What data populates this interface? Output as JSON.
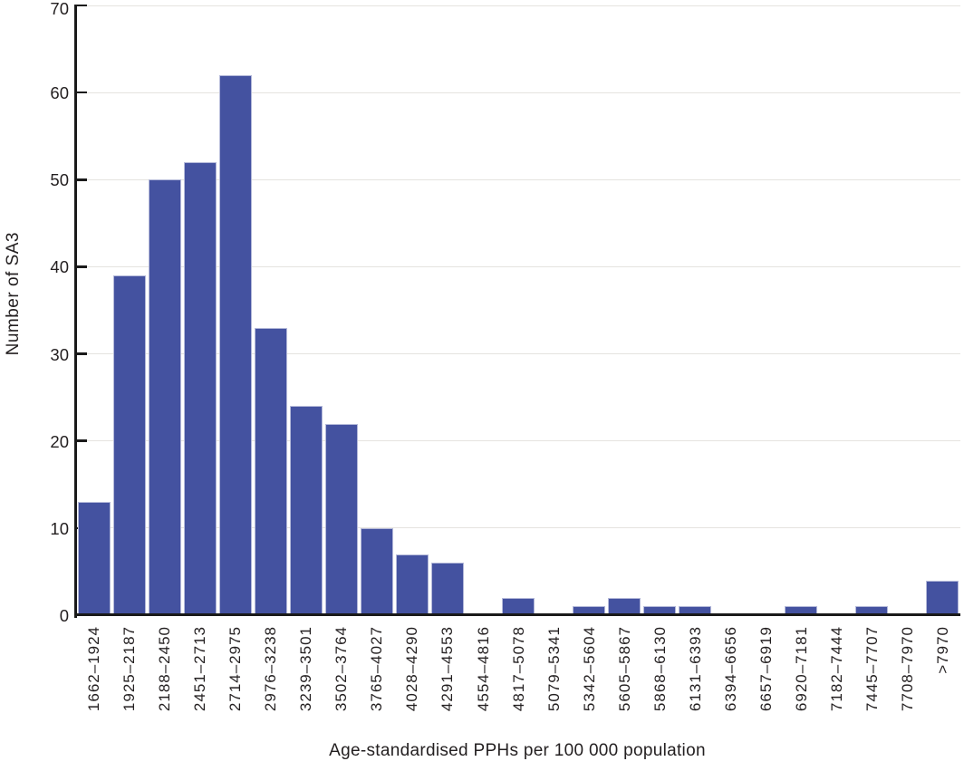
{
  "chart_data": {
    "type": "bar",
    "title": "",
    "xlabel": "Age-standardised PPHs per 100 000 population",
    "ylabel": "Number of SA3",
    "categories": [
      "1662–1924",
      "1925–2187",
      "2188–2450",
      "2451–2713",
      "2714–2975",
      "2976–3238",
      "3239–3501",
      "3502–3764",
      "3765–4027",
      "4028–4290",
      "4291–4553",
      "4554–4816",
      "4817–5078",
      "5079–5341",
      "5342–5604",
      "5605–5867",
      "5868–6130",
      "6131–6393",
      "6394–6656",
      "6657–6919",
      "6920–7181",
      "7182–7444",
      "7445–7707",
      "7708–7970",
      ">7970"
    ],
    "values": [
      13,
      39,
      50,
      52,
      62,
      33,
      24,
      22,
      10,
      7,
      6,
      0,
      2,
      0,
      1,
      2,
      1,
      1,
      0,
      0,
      1,
      0,
      1,
      0,
      4
    ],
    "ylim": [
      0,
      70
    ],
    "yticks": [
      0,
      10,
      20,
      30,
      40,
      50,
      60,
      70
    ],
    "grid": "horizontal",
    "legend_position": "none",
    "colors": {
      "bar_fill": "#4452a0",
      "bar_edge": "rgba(255,255,255,0.6)",
      "gridline": "#e5e3df",
      "axis": "#1a1a1a",
      "text": "#231f20"
    }
  }
}
